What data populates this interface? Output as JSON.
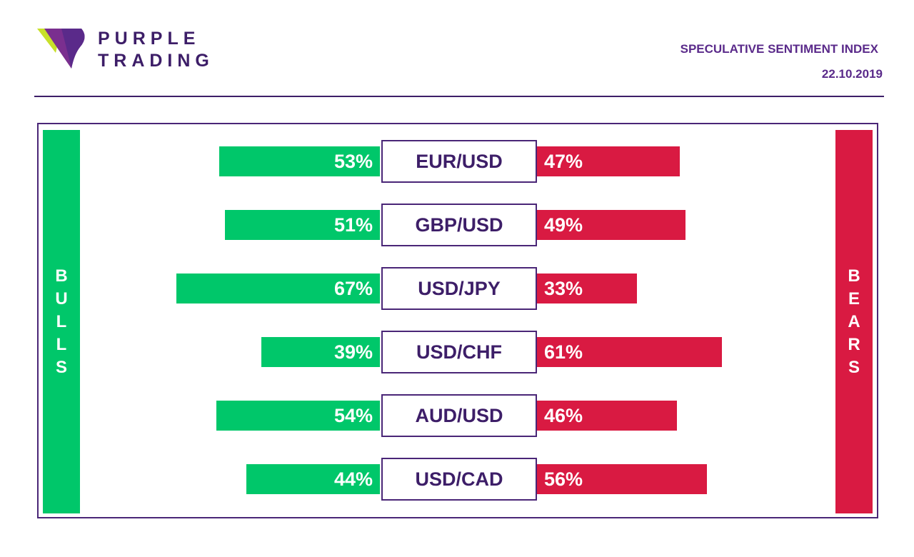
{
  "brand": {
    "line1": "PURPLE",
    "line2": "TRADING",
    "logo_colors": [
      "#c8e02a",
      "#7a2f8f",
      "#4a2677"
    ]
  },
  "header": {
    "title": "SPECULATIVE SENTIMENT INDEX",
    "date": "22.10.2019"
  },
  "labels": {
    "bulls": "BULLS",
    "bears": "BEARS"
  },
  "colors": {
    "bulls": "#00c76a",
    "bears": "#d91a42",
    "accent": "#4a2677"
  },
  "chart_data": {
    "type": "bar",
    "categories": [
      "EUR/USD",
      "GBP/USD",
      "USD/JPY",
      "USD/CHF",
      "AUD/USD",
      "USD/CAD"
    ],
    "series": [
      {
        "name": "BULLS",
        "values": [
          53,
          51,
          67,
          39,
          54,
          44
        ],
        "labels": [
          "53%",
          "51%",
          "67%",
          "39%",
          "54%",
          "44%"
        ]
      },
      {
        "name": "BEARS",
        "values": [
          47,
          49,
          33,
          61,
          46,
          56
        ],
        "labels": [
          "47%",
          "49%",
          "33%",
          "61%",
          "46%",
          "56%"
        ]
      }
    ],
    "title": "SPECULATIVE SENTIMENT INDEX",
    "unit": "%"
  }
}
